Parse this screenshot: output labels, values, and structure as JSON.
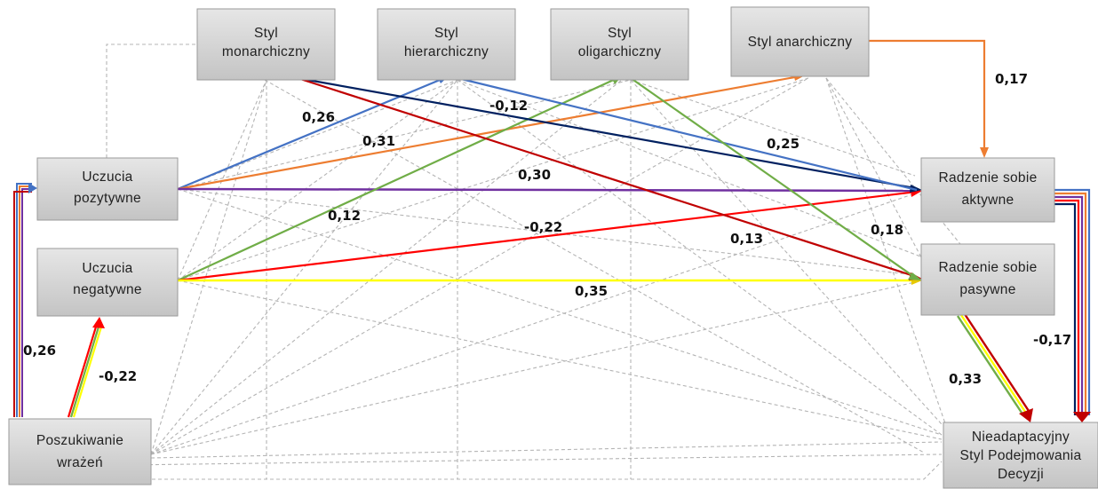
{
  "nodes": {
    "styl_monarchiczny": {
      "lines": [
        "Styl",
        "monarchiczny"
      ]
    },
    "styl_hierarchiczny": {
      "lines": [
        "Styl",
        "hierarchiczny"
      ]
    },
    "styl_oligarchiczny": {
      "lines": [
        "Styl",
        "oligarchiczny"
      ]
    },
    "styl_anarchiczny": {
      "lines": [
        "Styl anarchiczny"
      ]
    },
    "uczucia_pozytywne": {
      "lines": [
        "Uczucia",
        "pozytywne"
      ]
    },
    "uczucia_negatywne": {
      "lines": [
        "Uczucia",
        "negatywne"
      ]
    },
    "poszukiwanie_wrazen": {
      "lines": [
        "Poszukiwanie",
        "wrażeń"
      ]
    },
    "radzenie_aktywne": {
      "lines": [
        "Radzenie sobie",
        "aktywne"
      ]
    },
    "radzenie_pasywne": {
      "lines": [
        "Radzenie sobie",
        "pasywne"
      ]
    },
    "nieadaptacyjny": {
      "lines": [
        "Nieadaptacyjny",
        "Styl Podejmowania",
        "Decyzji"
      ]
    }
  },
  "coefficients": {
    "mon_act": "0,26",
    "poz_olig": "0,31",
    "hier_act": "-0,12",
    "anarch_act": "0,17",
    "mon_act_b": "0,25",
    "poz_act": "0,30",
    "poz_hier": "0,12",
    "neg_act": "-0,22",
    "mon_pas": "0,13",
    "olig_pas": "0,18",
    "neg_pas": "0,35",
    "posz_poz": "0,26",
    "posz_neg": "-0,22",
    "pas_nie": "0,33",
    "act_nie": "-0,17"
  },
  "colors": {
    "blue": "#4472c4",
    "orange": "#ed7d31",
    "purple": "#7030a0",
    "green": "#70ad47",
    "red": "#ff0000",
    "darkred": "#c00000",
    "navy": "#002060",
    "yellow": "#ffff00",
    "gray_dashed": "#b4b4b4"
  }
}
